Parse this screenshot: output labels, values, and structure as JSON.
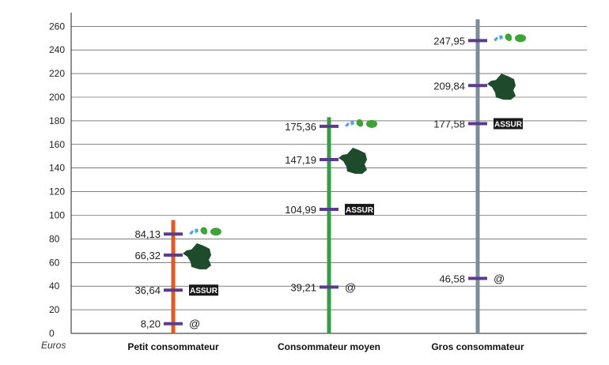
{
  "chart_data": {
    "type": "scatter",
    "unit_label": "Euros",
    "ylim": [
      0,
      270
    ],
    "yticks": [
      0,
      20,
      40,
      60,
      80,
      100,
      120,
      140,
      160,
      180,
      200,
      220,
      240,
      260
    ],
    "grid": true,
    "categories": [
      {
        "name": "Petit consommateur",
        "line_color": "#e05a25",
        "line_top": 96,
        "points": [
          {
            "label": "84,13",
            "value": 84.13,
            "marker": "dom-icon"
          },
          {
            "label": "66,32",
            "value": 66.32,
            "marker": "france-icon"
          },
          {
            "label": "36,64",
            "value": 36.64,
            "marker": "assur-badge"
          },
          {
            "label": "8,20",
            "value": 8.2,
            "marker": "at-icon"
          }
        ]
      },
      {
        "name": "Consommateur moyen",
        "line_color": "#3a9b46",
        "line_top": 183,
        "points": [
          {
            "label": "175,36",
            "value": 175.36,
            "marker": "dom-icon"
          },
          {
            "label": "147,19",
            "value": 147.19,
            "marker": "france-icon"
          },
          {
            "label": "104,99",
            "value": 104.99,
            "marker": "assur-badge"
          },
          {
            "label": "39,21",
            "value": 39.21,
            "marker": "at-icon"
          }
        ]
      },
      {
        "name": "Gros consommateur",
        "line_color": "#7a8e9a",
        "line_top": 266,
        "points": [
          {
            "label": "247,95",
            "value": 247.95,
            "marker": "dom-icon"
          },
          {
            "label": "209,84",
            "value": 209.84,
            "marker": "france-icon"
          },
          {
            "label": "177,58",
            "value": 177.58,
            "marker": "assur-badge"
          },
          {
            "label": "46,58",
            "value": 46.58,
            "marker": "at-icon"
          }
        ]
      }
    ],
    "marker_color": "#5a3b8c",
    "badge_text": "ASSUR",
    "at_text": "@"
  }
}
